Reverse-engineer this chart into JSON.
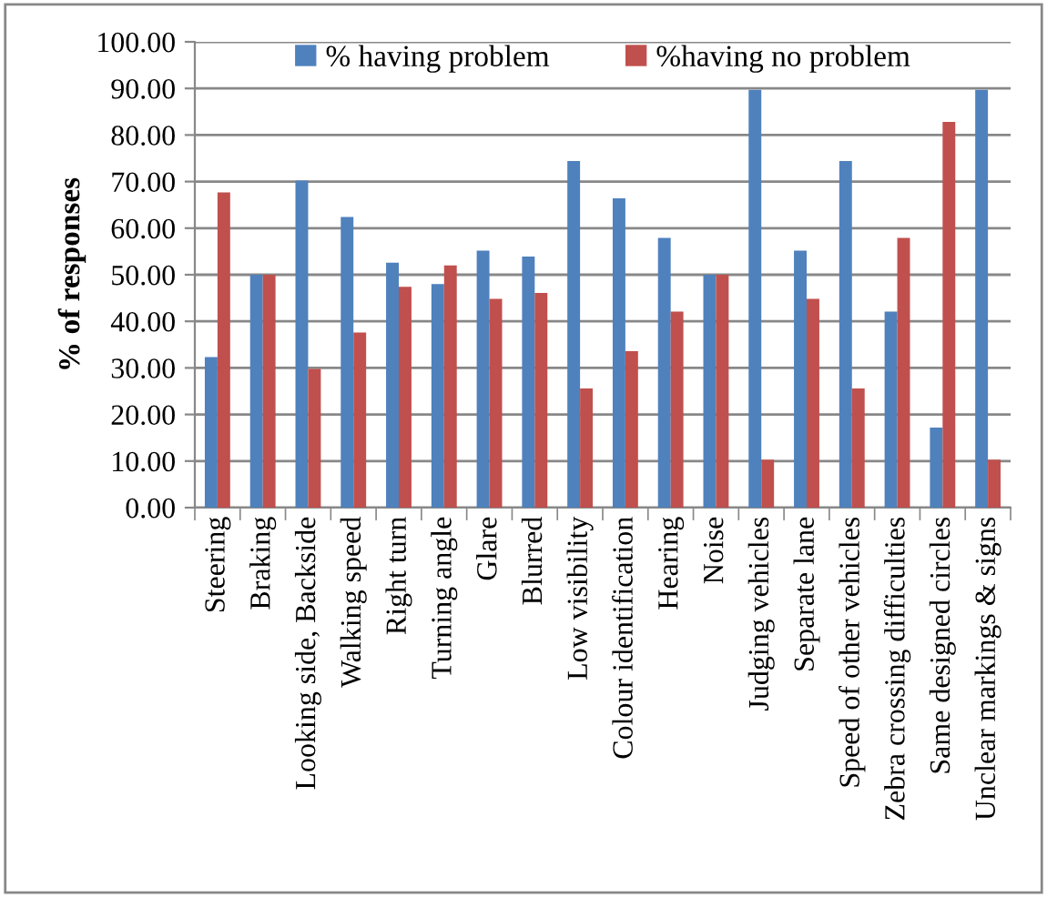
{
  "chart_data": {
    "type": "bar",
    "ylabel": "% of responses",
    "categories": [
      "Steering",
      "Braking",
      "Looking side, Backside",
      "Walking speed",
      "Right turn",
      "Turning angle",
      "Glare",
      "Blurred",
      "Low visibility",
      "Colour identification",
      "Hearing",
      "Noise",
      "Judging vehicles",
      "Separate lane",
      "Speed of other vehicles",
      "Zebra crossing difficulties",
      "Same designed circles",
      "Unclear markings & signs"
    ],
    "series": [
      {
        "name": "% having problem",
        "color": "#4f81bd",
        "values": [
          32.3,
          50,
          70.2,
          62.4,
          52.6,
          48,
          55.2,
          53.9,
          74.4,
          66.4,
          57.9,
          50,
          89.7,
          55.2,
          74.4,
          42.1,
          17.2,
          89.7
        ]
      },
      {
        "name": "%having no problem",
        "color": "#c0504d",
        "values": [
          67.7,
          50,
          29.8,
          37.6,
          47.4,
          52,
          44.8,
          46.1,
          25.6,
          33.6,
          42.1,
          50,
          10.3,
          44.8,
          25.6,
          57.9,
          82.8,
          10.3
        ]
      }
    ],
    "ylim": [
      0,
      100
    ],
    "yticks": [
      {
        "value": 0,
        "label": "0.00"
      },
      {
        "value": 10,
        "label": "10.00"
      },
      {
        "value": 20,
        "label": "20.00"
      },
      {
        "value": 30,
        "label": "30.00"
      },
      {
        "value": 40,
        "label": "40.00"
      },
      {
        "value": 50,
        "label": "50.00"
      },
      {
        "value": 60,
        "label": "60.00"
      },
      {
        "value": 70,
        "label": "70.00"
      },
      {
        "value": 80,
        "label": "80.00"
      },
      {
        "value": 90,
        "label": "90.00"
      },
      {
        "value": 100,
        "label": "100.00"
      }
    ],
    "grid": "y",
    "legend": "top"
  }
}
